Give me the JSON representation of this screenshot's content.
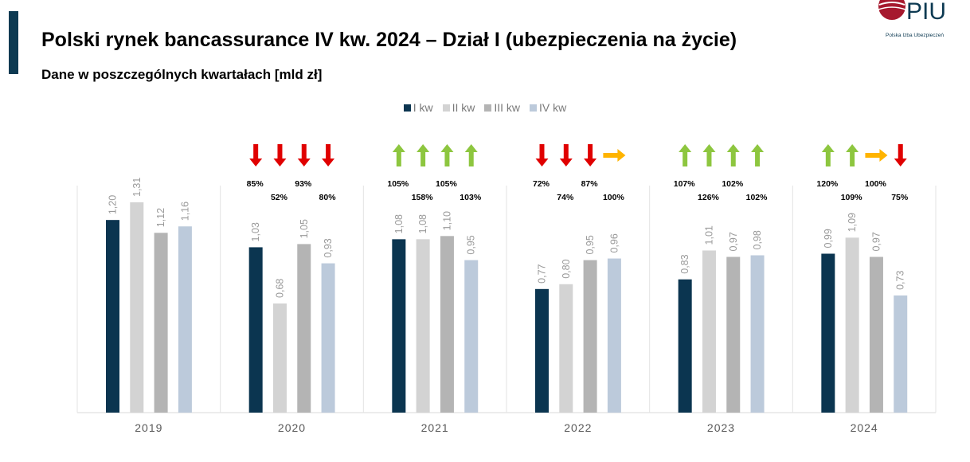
{
  "header": {
    "title": "Polski rynek bancassurance IV kw. 2024 – Dział I (ubezpieczenia na życie)",
    "subtitle": "Dane w poszczególnych kwartałach [mld zł]"
  },
  "logo": {
    "text": "PIU",
    "caption": "Polska Izba Ubezpieczeń"
  },
  "colors": {
    "accent": "#0d3a52",
    "arrow_down": "#e00000",
    "arrow_up": "#8dc63f",
    "arrow_flat": "#ffb400"
  },
  "chart_data": {
    "type": "bar",
    "title": "",
    "xlabel": "",
    "ylabel": "",
    "ylim": [
      0,
      1.4
    ],
    "grid": false,
    "legend_position": "top-center",
    "categories": [
      "2019",
      "2020",
      "2021",
      "2022",
      "2023",
      "2024"
    ],
    "series": [
      {
        "name": "I kw",
        "color": "#0b3550",
        "values": [
          1.2,
          1.03,
          1.08,
          0.77,
          0.83,
          0.99
        ],
        "labels": [
          "1,20",
          "1,03",
          "1,08",
          "0,77",
          "0,83",
          "0,99"
        ]
      },
      {
        "name": "II kw",
        "color": "#d3d3d3",
        "values": [
          1.31,
          0.68,
          1.08,
          0.8,
          1.01,
          1.09
        ],
        "labels": [
          "1,31",
          "0,68",
          "1,08",
          "0,80",
          "1,01",
          "1,09"
        ]
      },
      {
        "name": "III kw",
        "color": "#b4b4b4",
        "values": [
          1.12,
          1.05,
          1.1,
          0.95,
          0.97,
          0.97
        ],
        "labels": [
          "1,12",
          "1,05",
          "1,10",
          "0,95",
          "0,97",
          "0,97"
        ]
      },
      {
        "name": "IV kw",
        "color": "#bccadb",
        "values": [
          1.16,
          0.93,
          0.95,
          0.96,
          0.98,
          0.73
        ],
        "labels": [
          "1,16",
          "0,93",
          "0,95",
          "0,96",
          "0,98",
          "0,73"
        ]
      }
    ],
    "annotations": [
      null,
      {
        "arrows": [
          "down",
          "down",
          "down",
          "down"
        ],
        "percents": [
          "85%",
          "52%",
          "93%",
          "80%"
        ]
      },
      {
        "arrows": [
          "up",
          "up",
          "up",
          "up"
        ],
        "percents": [
          "105%",
          "158%",
          "105%",
          "103%"
        ]
      },
      {
        "arrows": [
          "down",
          "down",
          "down",
          "flat"
        ],
        "percents": [
          "72%",
          "74%",
          "87%",
          "100%"
        ]
      },
      {
        "arrows": [
          "up",
          "up",
          "up",
          "up"
        ],
        "percents": [
          "107%",
          "126%",
          "102%",
          "102%"
        ]
      },
      {
        "arrows": [
          "up",
          "up",
          "flat",
          "down"
        ],
        "percents": [
          "120%",
          "109%",
          "100%",
          "75%"
        ]
      }
    ]
  }
}
